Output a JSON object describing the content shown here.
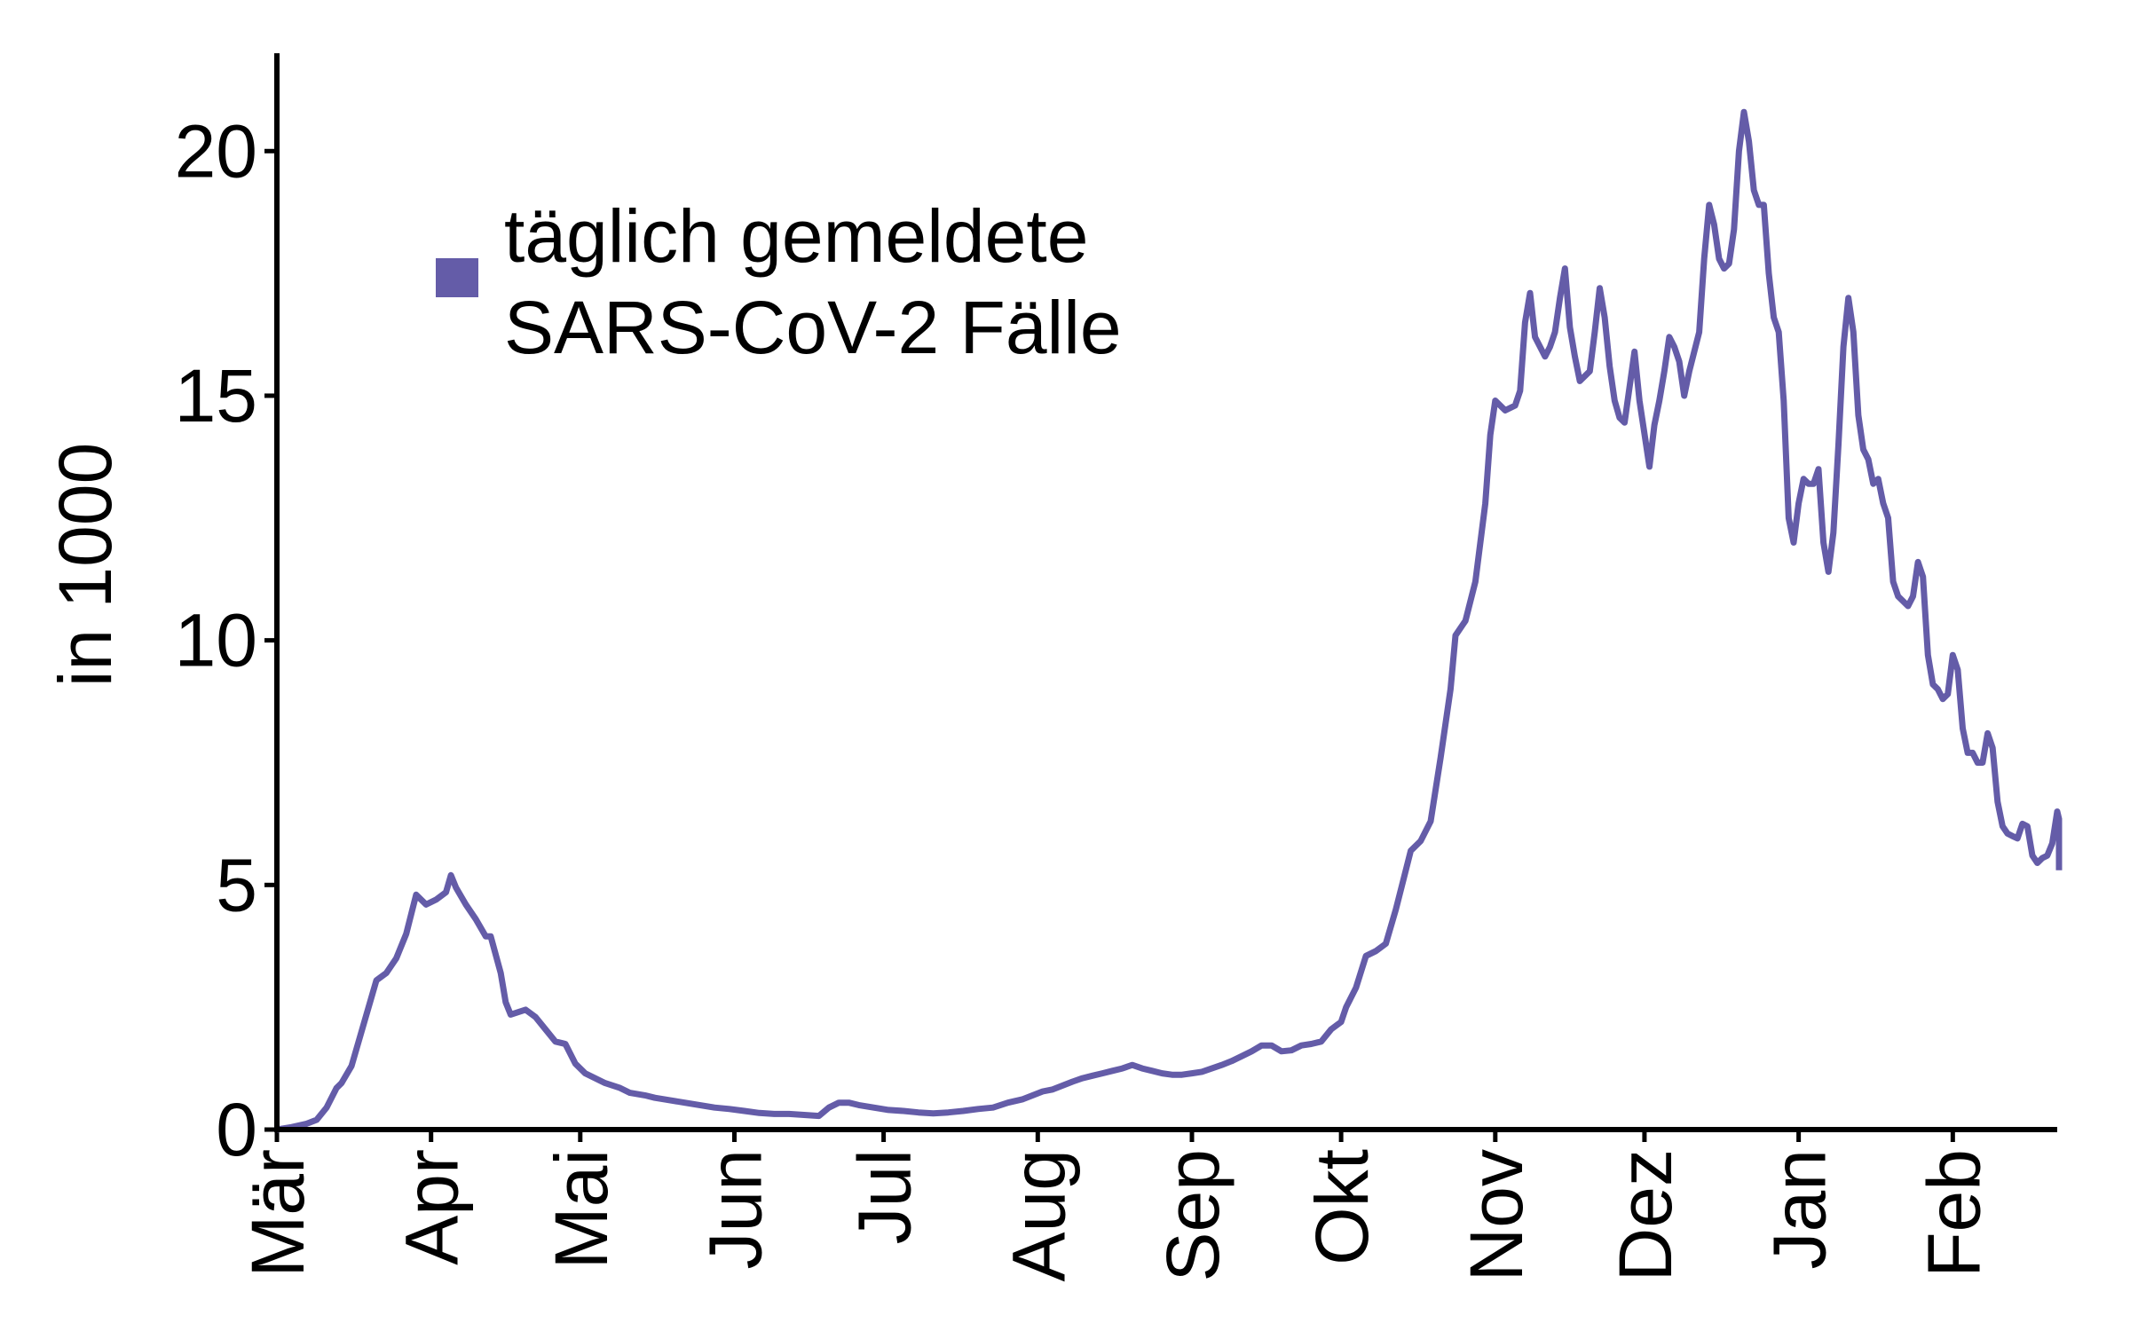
{
  "chart_data": {
    "type": "line",
    "title": "",
    "xlabel": "",
    "ylabel": "in 1000",
    "x_tick_labels": [
      "Mär",
      "Apr",
      "Mai",
      "Jun",
      "Jul",
      "Aug",
      "Sep",
      "Okt",
      "Nov",
      "Dez",
      "Jan",
      "Feb"
    ],
    "y_tick_labels": [
      "0",
      "5",
      "10",
      "15",
      "20"
    ],
    "y_ticks": [
      0,
      5,
      10,
      15,
      20
    ],
    "ylim": [
      0,
      22
    ],
    "xlim": [
      0,
      358
    ],
    "x_unit": "Tage ab 1. März",
    "month_starts": [
      0,
      31,
      61,
      92,
      122,
      153,
      184,
      214,
      245,
      275,
      306,
      337
    ],
    "grid": false,
    "legend": {
      "position": "top-left",
      "labels": [
        "täglich gemeldete",
        "SARS-CoV-2 Fälle"
      ]
    },
    "colors": {
      "series": "#645CA8",
      "axis": "#000000"
    },
    "series": [
      {
        "name": "täglich gemeldete SARS-CoV-2 Fälle",
        "points": [
          [
            0,
            0.0
          ],
          [
            3,
            0.05
          ],
          [
            6,
            0.12
          ],
          [
            8,
            0.2
          ],
          [
            10,
            0.45
          ],
          [
            12,
            0.85
          ],
          [
            13,
            0.95
          ],
          [
            15,
            1.3
          ],
          [
            17,
            2.0
          ],
          [
            19,
            2.7
          ],
          [
            20,
            3.05
          ],
          [
            22,
            3.2
          ],
          [
            24,
            3.5
          ],
          [
            26,
            4.0
          ],
          [
            28,
            4.8
          ],
          [
            30,
            4.6
          ],
          [
            32,
            4.7
          ],
          [
            34,
            4.85
          ],
          [
            35,
            5.2
          ],
          [
            36,
            4.95
          ],
          [
            38,
            4.6
          ],
          [
            40,
            4.3
          ],
          [
            42,
            3.95
          ],
          [
            43,
            3.95
          ],
          [
            45,
            3.2
          ],
          [
            46,
            2.6
          ],
          [
            47,
            2.35
          ],
          [
            50,
            2.45
          ],
          [
            52,
            2.3
          ],
          [
            54,
            2.05
          ],
          [
            56,
            1.8
          ],
          [
            58,
            1.75
          ],
          [
            60,
            1.35
          ],
          [
            62,
            1.15
          ],
          [
            64,
            1.05
          ],
          [
            66,
            0.95
          ],
          [
            69,
            0.85
          ],
          [
            71,
            0.75
          ],
          [
            74,
            0.7
          ],
          [
            76,
            0.65
          ],
          [
            79,
            0.6
          ],
          [
            82,
            0.55
          ],
          [
            85,
            0.5
          ],
          [
            88,
            0.45
          ],
          [
            91,
            0.42
          ],
          [
            94,
            0.38
          ],
          [
            97,
            0.34
          ],
          [
            100,
            0.32
          ],
          [
            103,
            0.32
          ],
          [
            106,
            0.3
          ],
          [
            109,
            0.28
          ],
          [
            111,
            0.45
          ],
          [
            113,
            0.55
          ],
          [
            115,
            0.55
          ],
          [
            117,
            0.5
          ],
          [
            120,
            0.45
          ],
          [
            123,
            0.4
          ],
          [
            126,
            0.38
          ],
          [
            129,
            0.35
          ],
          [
            132,
            0.33
          ],
          [
            135,
            0.35
          ],
          [
            138,
            0.38
          ],
          [
            141,
            0.42
          ],
          [
            144,
            0.45
          ],
          [
            147,
            0.55
          ],
          [
            150,
            0.62
          ],
          [
            152,
            0.7
          ],
          [
            154,
            0.78
          ],
          [
            156,
            0.82
          ],
          [
            158,
            0.9
          ],
          [
            160,
            0.98
          ],
          [
            162,
            1.05
          ],
          [
            164,
            1.1
          ],
          [
            166,
            1.15
          ],
          [
            168,
            1.2
          ],
          [
            170,
            1.25
          ],
          [
            172,
            1.32
          ],
          [
            174,
            1.25
          ],
          [
            176,
            1.2
          ],
          [
            178,
            1.15
          ],
          [
            180,
            1.12
          ],
          [
            182,
            1.12
          ],
          [
            184,
            1.15
          ],
          [
            186,
            1.18
          ],
          [
            188,
            1.25
          ],
          [
            190,
            1.32
          ],
          [
            192,
            1.4
          ],
          [
            194,
            1.5
          ],
          [
            196,
            1.6
          ],
          [
            198,
            1.72
          ],
          [
            200,
            1.72
          ],
          [
            202,
            1.6
          ],
          [
            204,
            1.62
          ],
          [
            206,
            1.72
          ],
          [
            208,
            1.75
          ],
          [
            210,
            1.8
          ],
          [
            212,
            2.05
          ],
          [
            214,
            2.2
          ],
          [
            215,
            2.5
          ],
          [
            217,
            2.9
          ],
          [
            219,
            3.55
          ],
          [
            221,
            3.65
          ],
          [
            223,
            3.8
          ],
          [
            225,
            4.5
          ],
          [
            227,
            5.3
          ],
          [
            228,
            5.7
          ],
          [
            230,
            5.9
          ],
          [
            232,
            6.3
          ],
          [
            234,
            7.6
          ],
          [
            236,
            9.0
          ],
          [
            237,
            10.1
          ],
          [
            239,
            10.4
          ],
          [
            241,
            11.2
          ],
          [
            243,
            12.8
          ],
          [
            244,
            14.2
          ],
          [
            245,
            14.9
          ],
          [
            247,
            14.7
          ],
          [
            249,
            14.8
          ],
          [
            250,
            15.1
          ],
          [
            251,
            16.5
          ],
          [
            252,
            17.1
          ],
          [
            253,
            16.2
          ],
          [
            255,
            15.8
          ],
          [
            256,
            16.0
          ],
          [
            257,
            16.3
          ],
          [
            258,
            17.0
          ],
          [
            259,
            17.6
          ],
          [
            260,
            16.4
          ],
          [
            261,
            15.8
          ],
          [
            262,
            15.3
          ],
          [
            264,
            15.5
          ],
          [
            265,
            16.3
          ],
          [
            266,
            17.2
          ],
          [
            267,
            16.6
          ],
          [
            268,
            15.6
          ],
          [
            269,
            14.9
          ],
          [
            270,
            14.55
          ],
          [
            271,
            14.45
          ],
          [
            273,
            15.9
          ],
          [
            274,
            14.9
          ],
          [
            276,
            13.55
          ],
          [
            277,
            14.4
          ],
          [
            278,
            14.9
          ],
          [
            279,
            15.5
          ],
          [
            280,
            16.2
          ],
          [
            281,
            16.0
          ],
          [
            282,
            15.7
          ],
          [
            283,
            15.0
          ],
          [
            284,
            15.5
          ],
          [
            286,
            16.3
          ],
          [
            287,
            17.8
          ],
          [
            288,
            18.9
          ],
          [
            289,
            18.5
          ],
          [
            290,
            17.8
          ],
          [
            291,
            17.6
          ],
          [
            292,
            17.7
          ],
          [
            293,
            18.4
          ],
          [
            294,
            20.0
          ],
          [
            295,
            20.8
          ],
          [
            296,
            20.2
          ],
          [
            297,
            19.2
          ],
          [
            298,
            18.9
          ],
          [
            299,
            18.9
          ],
          [
            300,
            17.5
          ],
          [
            301,
            16.6
          ],
          [
            302,
            16.3
          ],
          [
            303,
            14.9
          ],
          [
            304,
            12.5
          ],
          [
            305,
            12.0
          ],
          [
            306,
            12.8
          ],
          [
            307,
            13.3
          ],
          [
            308,
            13.2
          ],
          [
            309,
            13.2
          ],
          [
            310,
            13.5
          ],
          [
            311,
            12.0
          ],
          [
            312,
            11.4
          ],
          [
            313,
            12.2
          ],
          [
            314,
            14.0
          ],
          [
            315,
            16.0
          ],
          [
            316,
            17.0
          ],
          [
            317,
            16.3
          ],
          [
            318,
            14.6
          ],
          [
            319,
            13.9
          ],
          [
            320,
            13.7
          ],
          [
            321,
            13.2
          ],
          [
            322,
            13.3
          ],
          [
            323,
            12.8
          ],
          [
            324,
            12.5
          ],
          [
            325,
            11.2
          ],
          [
            326,
            10.9
          ],
          [
            327,
            10.8
          ],
          [
            328,
            10.7
          ],
          [
            329,
            10.9
          ],
          [
            330,
            11.6
          ],
          [
            331,
            11.3
          ],
          [
            332,
            9.7
          ],
          [
            333,
            9.1
          ],
          [
            334,
            9.0
          ],
          [
            335,
            8.8
          ],
          [
            336,
            8.9
          ],
          [
            337,
            9.7
          ],
          [
            338,
            9.4
          ],
          [
            339,
            8.2
          ],
          [
            340,
            7.7
          ],
          [
            341,
            7.7
          ],
          [
            342,
            7.5
          ],
          [
            343,
            7.5
          ],
          [
            344,
            8.1
          ],
          [
            345,
            7.8
          ],
          [
            346,
            6.7
          ],
          [
            347,
            6.2
          ],
          [
            348,
            6.05
          ],
          [
            349,
            6.0
          ],
          [
            350,
            5.95
          ],
          [
            351,
            6.25
          ],
          [
            352,
            6.2
          ],
          [
            353,
            5.6
          ],
          [
            354,
            5.45
          ],
          [
            355,
            5.55
          ],
          [
            356,
            5.6
          ],
          [
            357,
            5.85
          ],
          [
            358,
            6.5
          ],
          [
            359,
            6.35
          ],
          [
            360,
            5.8
          ],
          [
            361,
            5.3
          ]
        ]
      }
    ]
  }
}
